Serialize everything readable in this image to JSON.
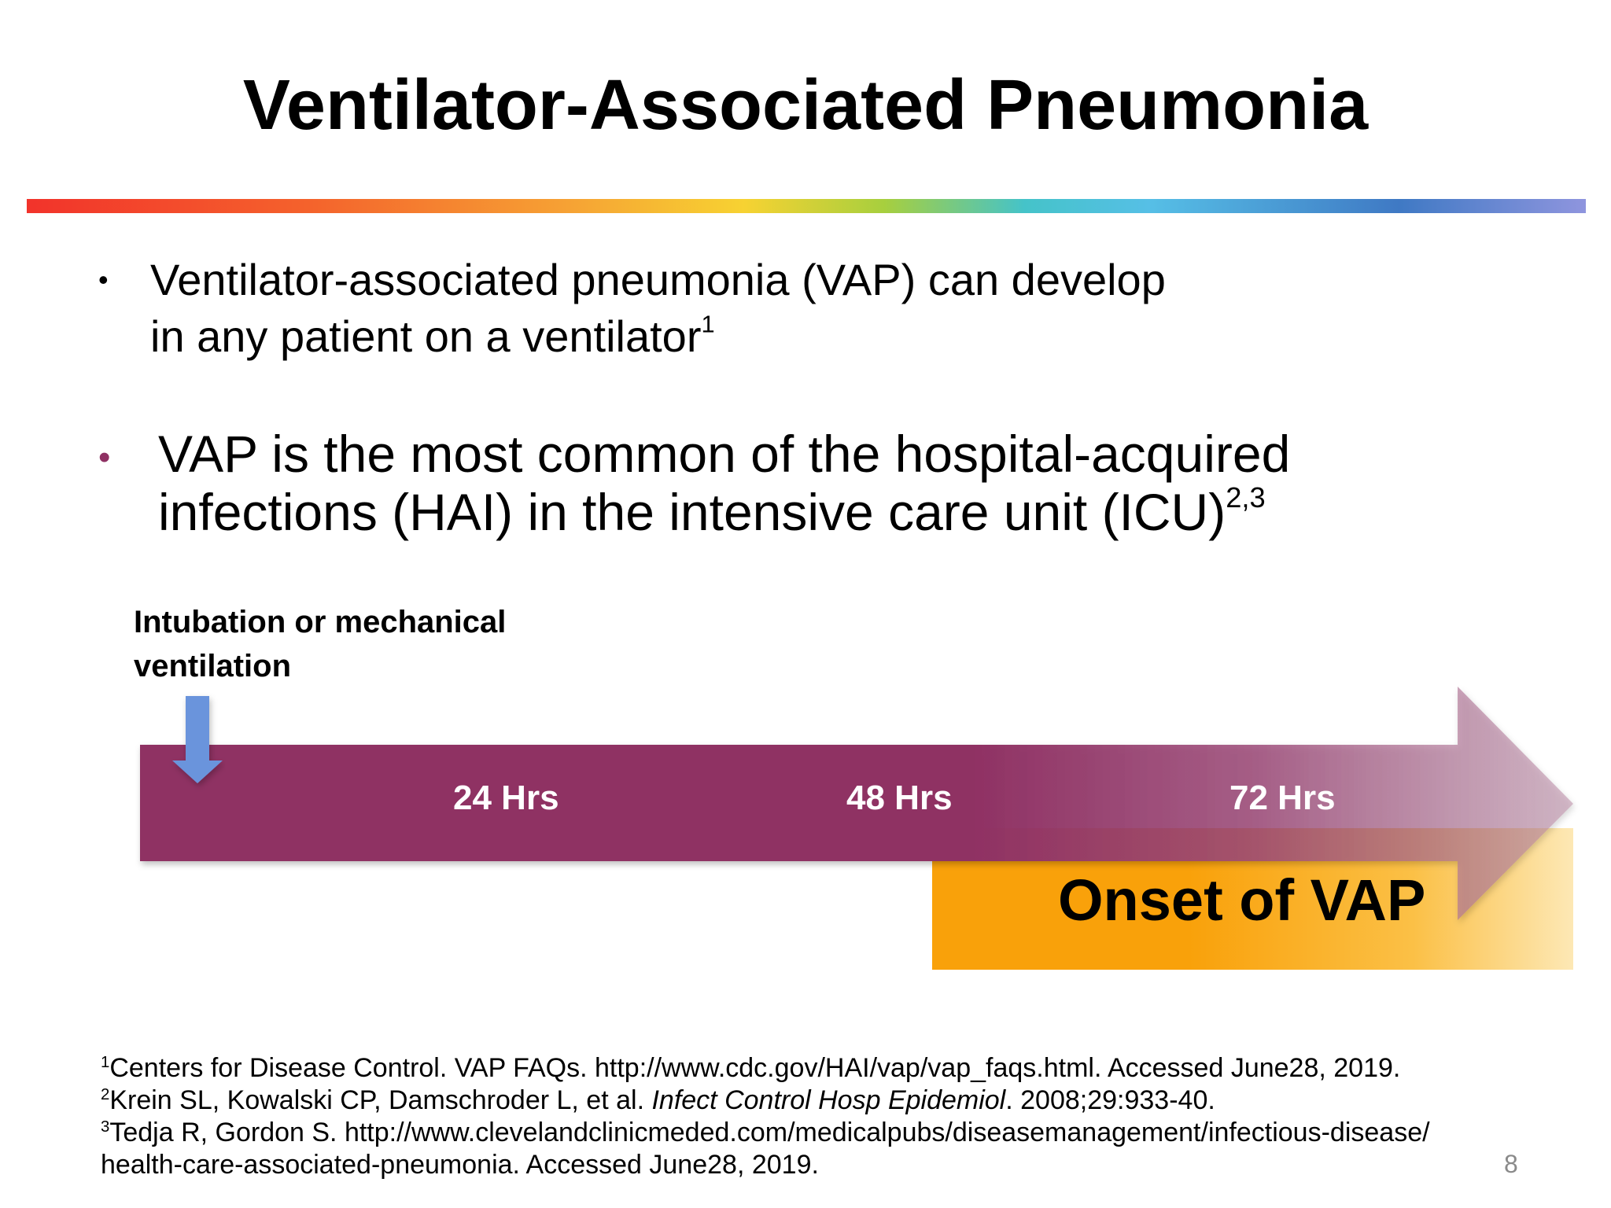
{
  "slide": {
    "title": "Ventilator-Associated Pneumonia",
    "page_number": "8"
  },
  "bullets": [
    {
      "line1": "Ventilator-associated pneumonia (VAP) can develop",
      "line2": "in any patient on a ventilator",
      "sup": "1"
    },
    {
      "line1": "VAP is the most common of the hospital-acquired",
      "line2": "infections (HAI) in the intensive care unit (ICU)",
      "sup": "2,3"
    }
  ],
  "timeline": {
    "start_label_line1": "Intubation or mechanical",
    "start_label_line2": "ventilation",
    "markers": [
      "24 Hrs",
      "48 Hrs",
      "72 Hrs"
    ],
    "onset_label": "Onset of VAP",
    "colors": {
      "arrow": "#8f3163",
      "down_arrow": "#6a94dc",
      "onset": "#f9a10a"
    }
  },
  "references": [
    {
      "num": "1",
      "text": "Centers for Disease Control. VAP FAQs. http://www.cdc.gov/HAI/vap/vap_faqs.html. Accessed June28, 2019."
    },
    {
      "num": "2",
      "pre": "Krein SL, Kowalski CP, Damschroder L, et al. ",
      "italic": "Infect Control Hosp Epidemiol",
      "post": ". 2008;29:933-40."
    },
    {
      "num": "3",
      "text": "Tedja R, Gordon S. http://www.clevelandclinicmeded.com/medicalpubs/diseasemanagement/infectious-disease/",
      "cont": "health-care-associated-pneumonia. Accessed June28, 2019."
    }
  ]
}
